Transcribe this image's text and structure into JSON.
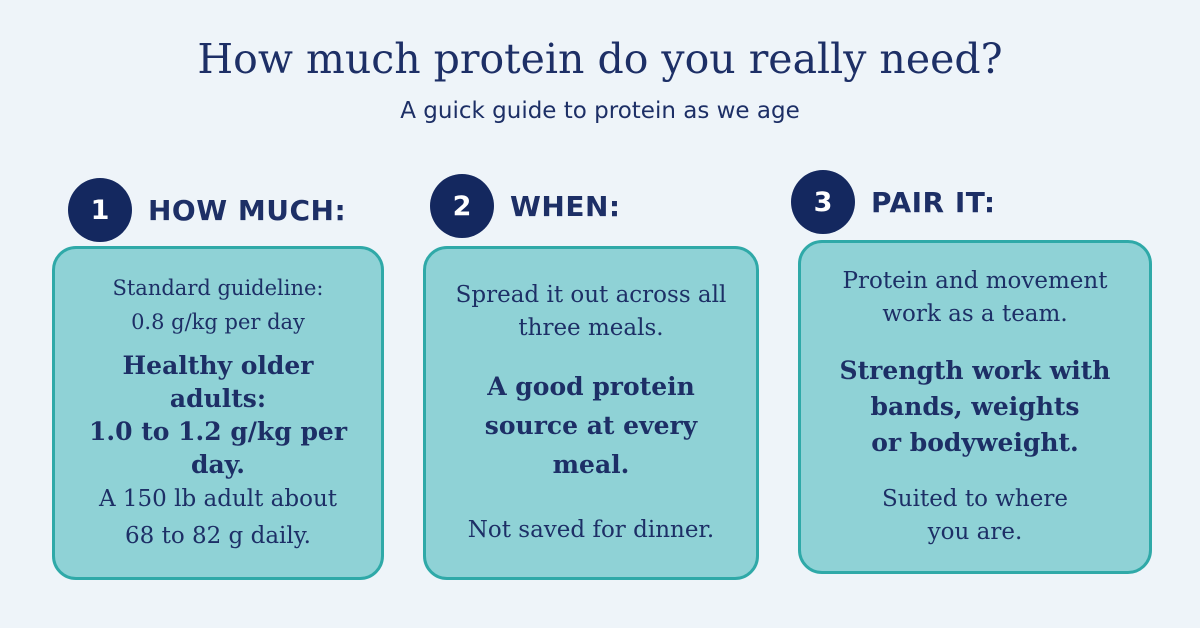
{
  "header": {
    "title": "How much protein do you really need?",
    "subtitle": "A guick guide to protein as we age"
  },
  "steps": [
    {
      "number": "1",
      "label": "HOW MUCH:",
      "lines": {
        "guideline_label": "Standard  guideline:",
        "guideline_value": "0.8 g/kg per day",
        "older_adults": "Healthy older\nadults:\n1.0 to 1.2 g/kg per\nday.",
        "example": "A 150 lb adult about\n68 to 82 g daily."
      }
    },
    {
      "number": "2",
      "label": "WHEN:",
      "lines": {
        "intro": "Spread it out across all\nthree meals.",
        "emphasis": "A good protein\nsource at every\nmeal.",
        "note": "Not saved for dinner."
      }
    },
    {
      "number": "3",
      "label": "PAIR IT:",
      "lines": {
        "intro": "Protein and movement\nwork as a team.",
        "emphasis": "Strength work with\nbands, weights\nor bodyweight.",
        "note": "Suited to where\nyou are."
      }
    }
  ],
  "colors": {
    "background": "#eef4f9",
    "navy": "#14285f",
    "card_fill": "#8fd2d6",
    "card_border": "#2fa9a8"
  }
}
